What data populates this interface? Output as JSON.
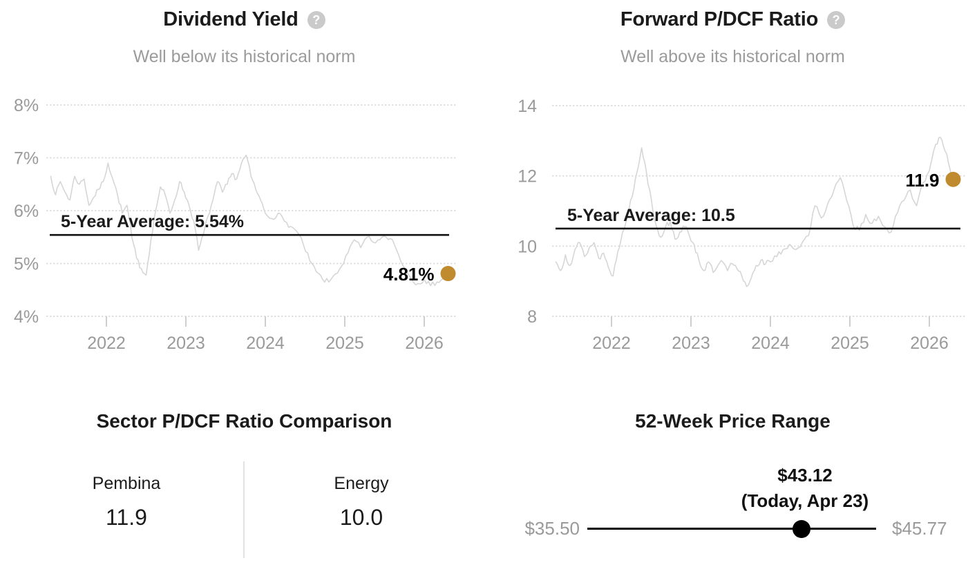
{
  "colors": {
    "accent_gold": "#C08A2E",
    "series_line": "#D6D6D6",
    "gridline": "#DBDBDB",
    "axis_text": "#9A9A9A",
    "tick_mark": "#CFCFCF",
    "title_text": "#1B1B1B",
    "subtitle_text": "#9B9B9B",
    "average_line": "#111111",
    "range_dot": "#000000",
    "divider": "#E2E2E2",
    "help_icon_bg": "#CACACA"
  },
  "help_icon": "?",
  "chart_data": [
    {
      "type": "line",
      "title": "Dividend Yield",
      "subtitle": "Well below its historical norm",
      "ylim": [
        4,
        8
      ],
      "xlim": [
        2021.25,
        2026.4
      ],
      "grid": "dotted-horizontal",
      "y_ticks": [
        {
          "value": 8,
          "label": "8%"
        },
        {
          "value": 7,
          "label": "7%"
        },
        {
          "value": 6,
          "label": "6%"
        },
        {
          "value": 5,
          "label": "5%"
        },
        {
          "value": 4,
          "label": "4%"
        }
      ],
      "x_ticks": [
        {
          "value": 2022,
          "label": "2022"
        },
        {
          "value": 2023,
          "label": "2023"
        },
        {
          "value": 2024,
          "label": "2024"
        },
        {
          "value": 2025,
          "label": "2025"
        },
        {
          "value": 2026,
          "label": "2026"
        }
      ],
      "average": {
        "value": 5.54,
        "label": "5-Year Average: 5.54%"
      },
      "current": {
        "value": 4.81,
        "label": "4.81%"
      },
      "series": [
        [
          2021.3,
          6.65
        ],
        [
          2021.36,
          6.3
        ],
        [
          2021.42,
          6.55
        ],
        [
          2021.48,
          6.35
        ],
        [
          2021.54,
          6.2
        ],
        [
          2021.6,
          6.65
        ],
        [
          2021.66,
          6.5
        ],
        [
          2021.72,
          6.6
        ],
        [
          2021.78,
          6.1
        ],
        [
          2021.84,
          6.25
        ],
        [
          2021.9,
          6.4
        ],
        [
          2021.96,
          6.55
        ],
        [
          2022.02,
          6.9
        ],
        [
          2022.08,
          6.6
        ],
        [
          2022.14,
          6.3
        ],
        [
          2022.2,
          5.95
        ],
        [
          2022.26,
          6.1
        ],
        [
          2022.32,
          5.5
        ],
        [
          2022.38,
          5.1
        ],
        [
          2022.44,
          4.9
        ],
        [
          2022.5,
          4.78
        ],
        [
          2022.56,
          5.45
        ],
        [
          2022.62,
          6.0
        ],
        [
          2022.68,
          6.45
        ],
        [
          2022.74,
          6.3
        ],
        [
          2022.8,
          5.95
        ],
        [
          2022.86,
          6.2
        ],
        [
          2022.92,
          6.55
        ],
        [
          2022.98,
          6.35
        ],
        [
          2023.04,
          6.1
        ],
        [
          2023.1,
          5.8
        ],
        [
          2023.16,
          5.25
        ],
        [
          2023.22,
          5.55
        ],
        [
          2023.28,
          5.9
        ],
        [
          2023.34,
          6.2
        ],
        [
          2023.4,
          6.55
        ],
        [
          2023.46,
          6.35
        ],
        [
          2023.52,
          6.5
        ],
        [
          2023.58,
          6.7
        ],
        [
          2023.64,
          6.6
        ],
        [
          2023.7,
          6.9
        ],
        [
          2023.76,
          7.05
        ],
        [
          2023.82,
          6.65
        ],
        [
          2023.88,
          6.4
        ],
        [
          2023.94,
          6.2
        ],
        [
          2024.0,
          5.95
        ],
        [
          2024.08,
          5.85
        ],
        [
          2024.16,
          5.95
        ],
        [
          2024.24,
          5.8
        ],
        [
          2024.32,
          5.7
        ],
        [
          2024.4,
          5.6
        ],
        [
          2024.48,
          5.35
        ],
        [
          2024.56,
          5.05
        ],
        [
          2024.64,
          4.85
        ],
        [
          2024.72,
          4.7
        ],
        [
          2024.8,
          4.65
        ],
        [
          2024.88,
          4.8
        ],
        [
          2024.96,
          4.95
        ],
        [
          2025.04,
          5.2
        ],
        [
          2025.12,
          5.45
        ],
        [
          2025.2,
          5.3
        ],
        [
          2025.28,
          5.5
        ],
        [
          2025.36,
          5.4
        ],
        [
          2025.44,
          5.45
        ],
        [
          2025.52,
          5.5
        ],
        [
          2025.6,
          5.45
        ],
        [
          2025.68,
          5.15
        ],
        [
          2025.76,
          4.9
        ],
        [
          2025.84,
          4.7
        ],
        [
          2025.92,
          4.62
        ],
        [
          2026.0,
          4.7
        ],
        [
          2026.08,
          4.58
        ],
        [
          2026.16,
          4.65
        ],
        [
          2026.24,
          4.72
        ],
        [
          2026.3,
          4.81
        ]
      ]
    },
    {
      "type": "line",
      "title": "Forward P/DCF Ratio",
      "subtitle": "Well above its historical norm",
      "ylim": [
        8,
        14
      ],
      "xlim": [
        2021.25,
        2026.4
      ],
      "grid": "dotted-horizontal",
      "y_ticks": [
        {
          "value": 14,
          "label": "14"
        },
        {
          "value": 12,
          "label": "12"
        },
        {
          "value": 10,
          "label": "10"
        },
        {
          "value": 8,
          "label": "8"
        }
      ],
      "x_ticks": [
        {
          "value": 2022,
          "label": "2022"
        },
        {
          "value": 2023,
          "label": "2023"
        },
        {
          "value": 2024,
          "label": "2024"
        },
        {
          "value": 2025,
          "label": "2025"
        },
        {
          "value": 2026,
          "label": "2026"
        }
      ],
      "average": {
        "value": 10.5,
        "label": "5-Year Average: 10.5"
      },
      "current": {
        "value": 11.9,
        "label": "11.9"
      },
      "series": [
        [
          2021.3,
          9.55
        ],
        [
          2021.36,
          9.3
        ],
        [
          2021.42,
          9.75
        ],
        [
          2021.48,
          9.45
        ],
        [
          2021.54,
          9.9
        ],
        [
          2021.6,
          10.1
        ],
        [
          2021.66,
          9.7
        ],
        [
          2021.72,
          9.95
        ],
        [
          2021.78,
          10.1
        ],
        [
          2021.84,
          9.65
        ],
        [
          2021.9,
          9.8
        ],
        [
          2021.96,
          9.4
        ],
        [
          2022.02,
          9.15
        ],
        [
          2022.08,
          9.85
        ],
        [
          2022.14,
          10.4
        ],
        [
          2022.2,
          10.9
        ],
        [
          2022.26,
          11.4
        ],
        [
          2022.32,
          12.1
        ],
        [
          2022.38,
          12.8
        ],
        [
          2022.44,
          12.1
        ],
        [
          2022.5,
          11.35
        ],
        [
          2022.56,
          10.6
        ],
        [
          2022.62,
          10.25
        ],
        [
          2022.68,
          10.55
        ],
        [
          2022.74,
          10.7
        ],
        [
          2022.8,
          10.2
        ],
        [
          2022.86,
          10.4
        ],
        [
          2022.92,
          10.55
        ],
        [
          2022.98,
          10.3
        ],
        [
          2023.04,
          10.05
        ],
        [
          2023.1,
          9.6
        ],
        [
          2023.16,
          9.3
        ],
        [
          2023.22,
          9.55
        ],
        [
          2023.28,
          9.25
        ],
        [
          2023.34,
          9.45
        ],
        [
          2023.4,
          9.55
        ],
        [
          2023.46,
          9.3
        ],
        [
          2023.52,
          9.5
        ],
        [
          2023.58,
          9.35
        ],
        [
          2023.64,
          9.15
        ],
        [
          2023.7,
          8.85
        ],
        [
          2023.76,
          9.1
        ],
        [
          2023.82,
          9.45
        ],
        [
          2023.88,
          9.6
        ],
        [
          2023.94,
          9.5
        ],
        [
          2024.0,
          9.55
        ],
        [
          2024.08,
          9.7
        ],
        [
          2024.16,
          9.9
        ],
        [
          2024.24,
          10.05
        ],
        [
          2024.32,
          9.9
        ],
        [
          2024.4,
          10.1
        ],
        [
          2024.48,
          10.3
        ],
        [
          2024.56,
          11.15
        ],
        [
          2024.64,
          10.8
        ],
        [
          2024.72,
          11.2
        ],
        [
          2024.8,
          11.6
        ],
        [
          2024.88,
          11.95
        ],
        [
          2024.96,
          11.3
        ],
        [
          2025.04,
          10.6
        ],
        [
          2025.12,
          10.45
        ],
        [
          2025.2,
          10.9
        ],
        [
          2025.28,
          10.65
        ],
        [
          2025.36,
          10.85
        ],
        [
          2025.44,
          10.55
        ],
        [
          2025.52,
          10.4
        ],
        [
          2025.6,
          10.95
        ],
        [
          2025.68,
          11.3
        ],
        [
          2025.76,
          11.6
        ],
        [
          2025.84,
          11.15
        ],
        [
          2025.92,
          11.8
        ],
        [
          2026.0,
          12.15
        ],
        [
          2026.08,
          12.9
        ],
        [
          2026.14,
          13.1
        ],
        [
          2026.2,
          12.7
        ],
        [
          2026.26,
          12.2
        ],
        [
          2026.3,
          11.9
        ]
      ]
    },
    {
      "type": "table",
      "title": "Sector P/DCF Ratio Comparison",
      "columns": [
        "Pembina",
        "Energy"
      ],
      "values": [
        "11.9",
        "10.0"
      ]
    },
    {
      "type": "table",
      "title": "52-Week Price Range",
      "low_label": "$35.50",
      "high_label": "$45.77",
      "current_label": "$43.12",
      "current_note": "(Today, Apr 23)",
      "low": 35.5,
      "high": 45.77,
      "current": 43.12
    }
  ]
}
